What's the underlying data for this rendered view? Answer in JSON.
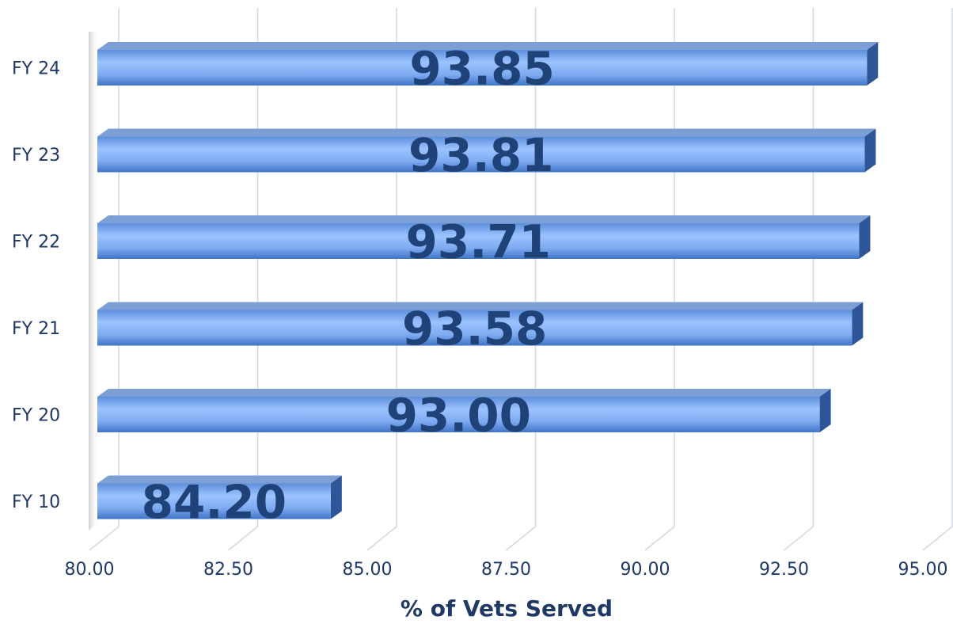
{
  "chart_data": {
    "type": "bar",
    "orientation": "horizontal",
    "categories": [
      "FY 24",
      "FY 23",
      "FY 22",
      "FY 21",
      "FY 20",
      "FY 10"
    ],
    "values": [
      93.85,
      93.81,
      93.71,
      93.58,
      93.0,
      84.2
    ],
    "value_labels": [
      "93.85",
      "93.81",
      "93.71",
      "93.58",
      "93.00",
      "84.20"
    ],
    "color": "#8fb7f5",
    "x_label": "% of Vets Served",
    "xlim": [
      80,
      95
    ],
    "xticks": [
      {
        "value": 80,
        "label": "80.00"
      },
      {
        "value": 82.5,
        "label": "82.50"
      },
      {
        "value": 85,
        "label": "85.00"
      },
      {
        "value": 87.5,
        "label": "87.50"
      },
      {
        "value": 90,
        "label": "90.00"
      },
      {
        "value": 92.5,
        "label": "92.50"
      },
      {
        "value": 95,
        "label": "95.00"
      }
    ],
    "grid": true
  }
}
